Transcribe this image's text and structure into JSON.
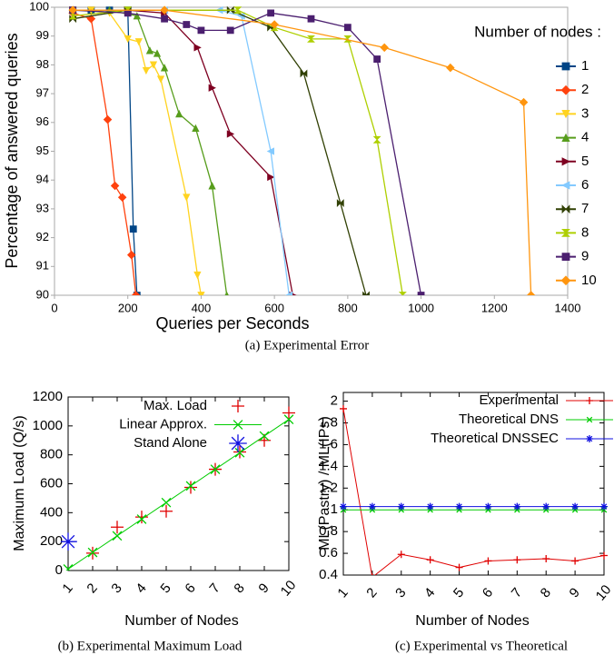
{
  "chart_data": [
    {
      "type": "line",
      "caption": "(a) Experimental Error",
      "xlabel": "Queries per Seconds",
      "ylabel": "Percentage of answered queries",
      "legend": "right",
      "legend_title": "Number of nodes :",
      "xlim": [
        0,
        1400
      ],
      "ylim": [
        90,
        100
      ],
      "xticks": [
        0,
        200,
        400,
        600,
        800,
        1000,
        1200,
        1400
      ],
      "yticks": [
        90,
        91,
        92,
        93,
        94,
        95,
        96,
        97,
        98,
        99,
        100
      ],
      "series": [
        {
          "name": "1",
          "color": "#004586",
          "marker": "square",
          "line": true,
          "x": [
            50,
            100,
            150,
            200,
            215,
            225
          ],
          "values": [
            99.9,
            99.9,
            99.9,
            99.9,
            92.3,
            90
          ]
        },
        {
          "name": "2",
          "color": "#ff420e",
          "marker": "diamond",
          "line": true,
          "x": [
            50,
            100,
            145,
            165,
            185,
            210,
            222
          ],
          "values": [
            99.8,
            99.6,
            96.1,
            93.8,
            93.4,
            91.4,
            90
          ]
        },
        {
          "name": "3",
          "color": "#ffd320",
          "marker": "triangle-down",
          "line": true,
          "x": [
            50,
            100,
            150,
            200,
            230,
            250,
            270,
            290,
            360,
            390,
            400
          ],
          "values": [
            99.9,
            99.9,
            99.8,
            98.9,
            98.8,
            97.8,
            98.0,
            97.5,
            93.4,
            90.7,
            90
          ]
        },
        {
          "name": "4",
          "color": "#579d1c",
          "marker": "triangle-up",
          "line": true,
          "x": [
            50,
            150,
            225,
            260,
            280,
            300,
            340,
            385,
            430,
            470
          ],
          "values": [
            99.9,
            99.9,
            99.7,
            98.5,
            98.4,
            97.9,
            96.3,
            95.8,
            93.8,
            90
          ]
        },
        {
          "name": "5",
          "color": "#7e0021",
          "marker": "triangle-right",
          "line": true,
          "x": [
            50,
            200,
            300,
            390,
            430,
            480,
            590,
            650
          ],
          "values": [
            99.9,
            99.9,
            99.8,
            98.6,
            97.2,
            95.6,
            94.1,
            90
          ]
        },
        {
          "name": "6",
          "color": "#83caff",
          "marker": "triangle-left",
          "line": true,
          "x": [
            50,
            300,
            450,
            510,
            590,
            640
          ],
          "values": [
            99.9,
            99.9,
            99.9,
            99.7,
            95.0,
            90
          ]
        },
        {
          "name": "7",
          "color": "#314004",
          "marker": "bowtie",
          "line": true,
          "x": [
            50,
            200,
            480,
            590,
            680,
            780,
            850
          ],
          "values": [
            99.6,
            99.9,
            99.9,
            99.3,
            97.7,
            93.2,
            90
          ]
        },
        {
          "name": "8",
          "color": "#aecf00",
          "marker": "hourglass",
          "line": true,
          "x": [
            50,
            200,
            500,
            600,
            700,
            800,
            880,
            950
          ],
          "values": [
            99.7,
            99.9,
            99.9,
            99.3,
            98.9,
            98.9,
            95.4,
            90
          ]
        },
        {
          "name": "9",
          "color": "#4b1f6f",
          "marker": "square",
          "line": true,
          "x": [
            50,
            200,
            300,
            360,
            400,
            480,
            590,
            700,
            800,
            880,
            1000
          ],
          "values": [
            99.9,
            99.8,
            99.6,
            99.4,
            99.2,
            99.2,
            99.8,
            99.6,
            99.3,
            98.2,
            90
          ]
        },
        {
          "name": "10",
          "color": "#ff950e",
          "marker": "diamond",
          "line": true,
          "x": [
            50,
            300,
            600,
            900,
            1080,
            1280,
            1300
          ],
          "values": [
            99.9,
            99.9,
            99.4,
            98.6,
            97.9,
            96.7,
            90
          ]
        }
      ]
    },
    {
      "type": "line",
      "caption": "(b) Experimental Maximum Load",
      "xlabel": "Number of Nodes",
      "ylabel": "Maximum Load (Q/s)",
      "legend": "upper-left",
      "xlim": [
        1,
        10
      ],
      "ylim": [
        0,
        1200
      ],
      "xticks": [
        1,
        2,
        3,
        4,
        5,
        6,
        7,
        8,
        9,
        10
      ],
      "yticks": [
        0,
        200,
        400,
        600,
        800,
        1000,
        1200
      ],
      "series": [
        {
          "name": "Max. Load",
          "color": "#e00000",
          "marker": "plus",
          "line": false,
          "x": [
            2,
            3,
            4,
            5,
            6,
            7,
            8,
            9,
            10
          ],
          "values": [
            120,
            300,
            370,
            410,
            575,
            700,
            820,
            900,
            1090
          ]
        },
        {
          "name": "Linear Approx.",
          "color": "#00cc00",
          "marker": "cross",
          "line": true,
          "x": [
            1,
            2,
            3,
            4,
            5,
            6,
            7,
            8,
            9,
            10
          ],
          "values": [
            10,
            125,
            240,
            355,
            470,
            585,
            700,
            815,
            930,
            1045
          ]
        },
        {
          "name": "Stand Alone",
          "color": "#1010e0",
          "marker": "star",
          "line": false,
          "x": [
            1
          ],
          "values": [
            200
          ]
        }
      ]
    },
    {
      "type": "line",
      "caption": "(c) Experimental vs Theoretical",
      "xlabel": "Number of Nodes",
      "ylabel": "ML(Pastry) / ML(IPs)",
      "legend": "upper-right",
      "xlim": [
        1,
        10
      ],
      "ylim": [
        0.4,
        2.08
      ],
      "xticks": [
        1,
        2,
        3,
        4,
        5,
        6,
        7,
        8,
        9,
        10
      ],
      "yticks": [
        0.4,
        0.6,
        0.8,
        1,
        1.2,
        1.4,
        1.6,
        1.8,
        2
      ],
      "series": [
        {
          "name": "Experimental",
          "color": "#e00000",
          "marker": "plus",
          "line": true,
          "x": [
            1,
            2,
            3,
            4,
            5,
            6,
            7,
            8,
            9,
            10
          ],
          "values": [
            1.93,
            0.38,
            0.59,
            0.54,
            0.47,
            0.53,
            0.54,
            0.55,
            0.53,
            0.58
          ]
        },
        {
          "name": "Theoretical DNS",
          "color": "#00cc00",
          "marker": "cross",
          "line": true,
          "x": [
            1,
            2,
            3,
            4,
            5,
            6,
            7,
            8,
            9,
            10
          ],
          "values": [
            1,
            1,
            1,
            1,
            1,
            1,
            1,
            1,
            1,
            1
          ]
        },
        {
          "name": "Theoretical DNSSEC",
          "color": "#1010e0",
          "marker": "star",
          "line": true,
          "x": [
            1,
            2,
            3,
            4,
            5,
            6,
            7,
            8,
            9,
            10
          ],
          "values": [
            1.03,
            1.03,
            1.03,
            1.03,
            1.03,
            1.03,
            1.03,
            1.03,
            1.03,
            1.03
          ]
        }
      ]
    }
  ]
}
